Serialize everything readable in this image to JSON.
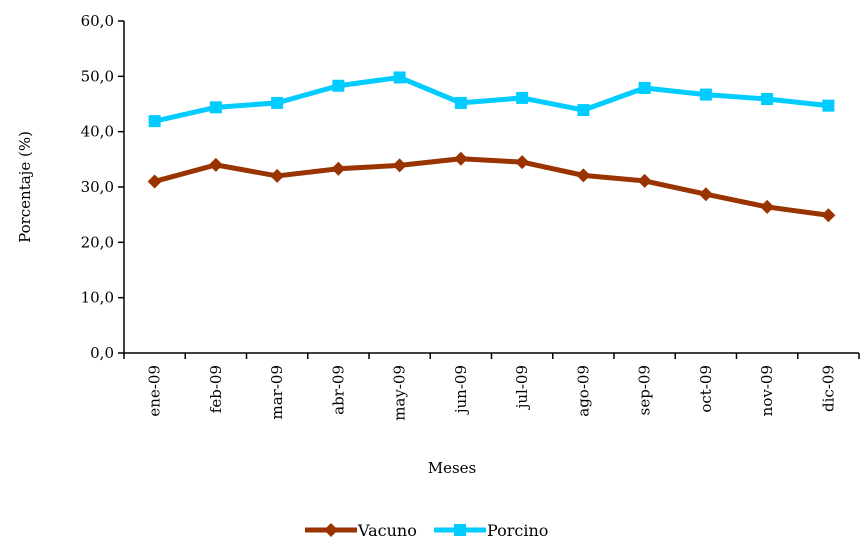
{
  "chart_data": {
    "type": "line",
    "categories": [
      "ene-09",
      "feb-09",
      "mar-09",
      "abr-09",
      "may-09",
      "jun-09",
      "jul-09",
      "ago-09",
      "sep-09",
      "oct-09",
      "nov-09",
      "dic-09"
    ],
    "series": [
      {
        "name": "Vacuno",
        "color": "#993300",
        "marker": "diamond",
        "values": [
          31.0,
          34.0,
          32.0,
          33.3,
          33.9,
          35.1,
          34.5,
          32.1,
          31.1,
          28.7,
          26.4,
          24.9
        ]
      },
      {
        "name": "Porcino",
        "color": "#00CCFF",
        "marker": "square",
        "values": [
          41.9,
          44.4,
          45.2,
          48.3,
          49.8,
          45.2,
          46.1,
          43.9,
          47.9,
          46.7,
          45.9,
          44.7
        ]
      }
    ],
    "xlabel": "Meses",
    "ylabel": "Porcentaje (%)",
    "ylim": [
      0,
      60
    ],
    "yticks": [
      "0,0",
      "10,0",
      "20,0",
      "30,0",
      "40,0",
      "50,0",
      "60,0"
    ],
    "grid": false,
    "legend_position": "bottom"
  }
}
